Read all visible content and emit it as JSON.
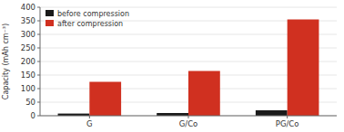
{
  "chart_data": {
    "type": "bar",
    "categories": [
      "G",
      "G/Co",
      "PG/Co"
    ],
    "series": [
      {
        "name": "before compression",
        "color": "#1a1a1a",
        "values": [
          8,
          10,
          20
        ]
      },
      {
        "name": "after compression",
        "color": "#d03020",
        "values": [
          125,
          165,
          355
        ]
      }
    ],
    "ylabel": "Capacity (mAh cm⁻³)",
    "ylim": [
      0,
      400
    ],
    "yticks": [
      0,
      50,
      100,
      150,
      200,
      250,
      300,
      350,
      400
    ],
    "legend": "upper left"
  }
}
